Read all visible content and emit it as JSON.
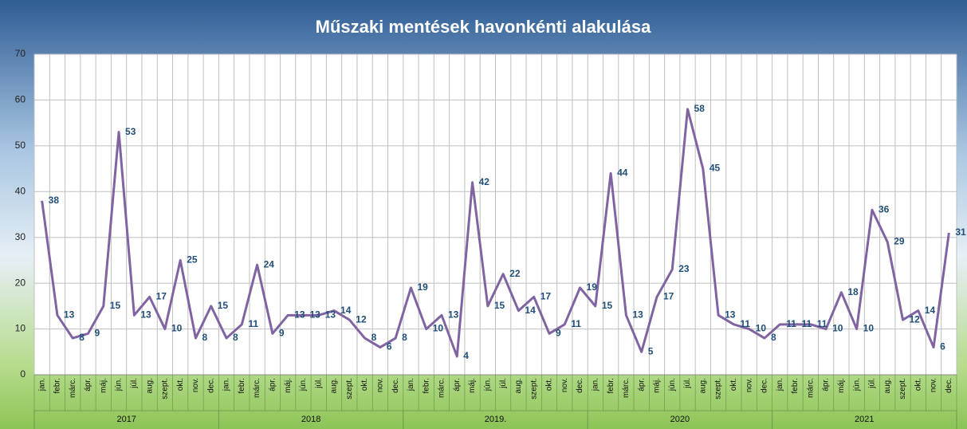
{
  "chart_data": {
    "type": "line",
    "title": "Műszaki mentések havonkénti alakulása",
    "categories": [
      "jan.",
      "febr.",
      "márc.",
      "ápr.",
      "máj.",
      "jún.",
      "júl.",
      "aug.",
      "szept.",
      "okt.",
      "nov.",
      "dec.",
      "jan.",
      "febr.",
      "márc.",
      "ápr.",
      "máj.",
      "jún.",
      "júl.",
      "aug.",
      "szept.",
      "okt.",
      "nov.",
      "dec.",
      "jan.",
      "febr.",
      "márc.",
      "ápr.",
      "máj.",
      "jún.",
      "júl.",
      "aug.",
      "szept.",
      "okt.",
      "nov.",
      "dec.",
      "jan.",
      "febr.",
      "márc.",
      "ápr.",
      "máj.",
      "jún.",
      "júl.",
      "aug.",
      "szept.",
      "okt.",
      "nov.",
      "dec.",
      "jan.",
      "febr.",
      "márc.",
      "ápr.",
      "máj.",
      "jún.",
      "júl.",
      "aug.",
      "szept.",
      "okt.",
      "nov.",
      "dec."
    ],
    "groups": [
      "2017",
      "2018",
      "2019.",
      "2020",
      "2021"
    ],
    "series": [
      {
        "color": "#8064a2",
        "values": [
          38,
          13,
          8,
          9,
          15,
          53,
          13,
          17,
          10,
          25,
          8,
          15,
          8,
          11,
          24,
          9,
          13,
          13,
          13,
          14,
          12,
          8,
          6,
          8,
          19,
          10,
          13,
          4,
          42,
          15,
          22,
          14,
          17,
          9,
          11,
          19,
          15,
          44,
          13,
          5,
          17,
          23,
          58,
          45,
          13,
          11,
          10,
          8,
          11,
          11,
          11,
          10,
          18,
          10,
          36,
          29,
          12,
          14,
          6,
          31
        ]
      }
    ],
    "ylim": [
      0,
      70
    ],
    "yticks": [
      0,
      10,
      20,
      30,
      40,
      50,
      60,
      70
    ],
    "grid": true
  }
}
